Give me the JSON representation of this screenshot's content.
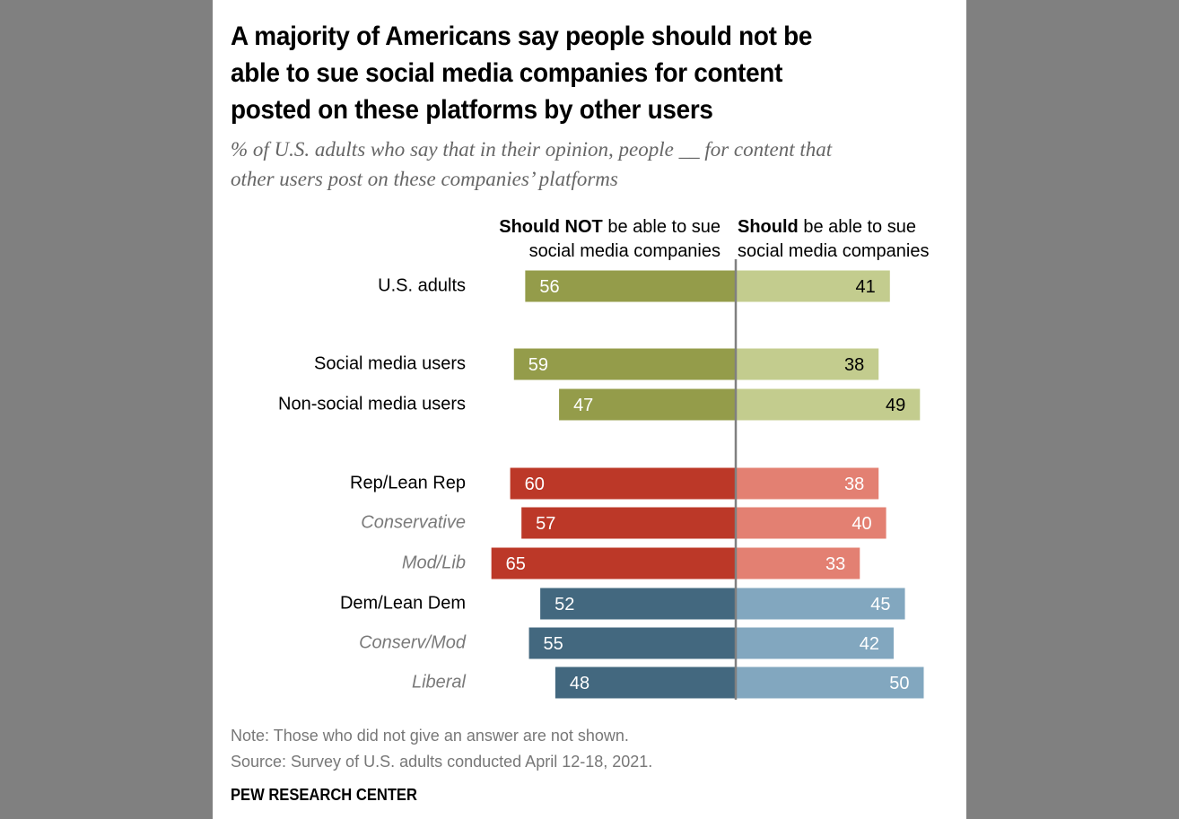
{
  "title": "A majority of Americans say people should not be\nable to sue social media companies for content\nposted on these platforms by other users",
  "subtitle": "% of U.S. adults who say that in their opinion, people __ for content that\nother users post on these companies’ platforms",
  "chart_data": {
    "type": "bar",
    "orientation": "diverging-horizontal",
    "title": "A majority of Americans say people should not be able to sue social media companies for content posted on these platforms by other users",
    "subtitle": "% of U.S. adults who say that in their opinion, people __ for content that other users post on these companies’ platforms",
    "xlabel": "",
    "ylabel": "",
    "grid": false,
    "legend": "top",
    "series_headers": [
      {
        "bold": "Should NOT",
        "rest_line1": " be able to sue",
        "rest_line2": "social media companies"
      },
      {
        "bold": "Should",
        "rest_line1": " be able to sue",
        "rest_line2": "social media companies"
      }
    ],
    "series": [
      {
        "name": "Should NOT be able to sue social media companies",
        "values": [
          56,
          59,
          47,
          60,
          57,
          65,
          52,
          55,
          48
        ]
      },
      {
        "name": "Should be able to sue social media companies",
        "values": [
          41,
          38,
          49,
          38,
          40,
          33,
          45,
          42,
          50
        ]
      }
    ],
    "categories": [
      "U.S. adults",
      "Social media users",
      "Non-social media users",
      "Rep/Lean Rep",
      "Conservative",
      "Mod/Lib",
      "Dem/Lean Dem",
      "Conserv/Mod",
      "Liberal"
    ],
    "category_style": [
      "main",
      "main",
      "main",
      "main",
      "sub",
      "sub",
      "main",
      "sub",
      "sub"
    ],
    "category_group": [
      "total",
      "social",
      "social",
      "rep",
      "rep",
      "rep",
      "dem",
      "dem",
      "dem"
    ],
    "colors": {
      "total": {
        "left": "#949c4a",
        "right": "#c3cc8e",
        "left_text": "#ffffff",
        "right_text": "#000000"
      },
      "social": {
        "left": "#949c4a",
        "right": "#c3cc8e",
        "left_text": "#ffffff",
        "right_text": "#000000"
      },
      "rep": {
        "left": "#bc3828",
        "right": "#e38072",
        "left_text": "#ffffff",
        "right_text": "#ffffff"
      },
      "dem": {
        "left": "#43687f",
        "right": "#82a7bf",
        "left_text": "#ffffff",
        "right_text": "#ffffff"
      },
      "axis": "#808080"
    },
    "xlim": [
      -70,
      60
    ]
  },
  "note": "Note: Those who did not give an answer are not shown.",
  "source": "Source: Survey of U.S. adults conducted April 12-18, 2021.",
  "brand": "PEW RESEARCH CENTER"
}
